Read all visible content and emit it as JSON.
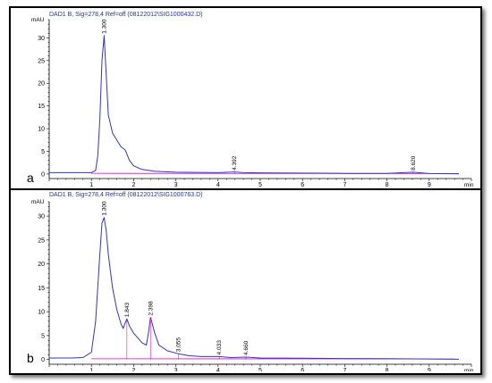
{
  "chart_data": [
    {
      "type": "line",
      "panel_letter": "a",
      "title": "DAD1 B, Sig=278,4 Ref=off (08122012\\SIG1000432.D)",
      "ylabel": "mAU",
      "xlabel": "min",
      "xlim": [
        0,
        10
      ],
      "ylim": [
        -1,
        34
      ],
      "x_ticks": [
        1,
        2,
        3,
        4,
        5,
        6,
        7,
        8,
        9
      ],
      "y_ticks": [
        0,
        5,
        10,
        15,
        20,
        25,
        30
      ],
      "peaks": [
        {
          "label": "1.300",
          "x": 1.3,
          "y": 30.5
        },
        {
          "label": "4.392",
          "x": 4.39,
          "y": 0.4
        },
        {
          "label": "8.620",
          "x": 8.62,
          "y": 0.4
        }
      ],
      "series": [
        {
          "x": [
            0.0,
            0.5,
            1.0,
            1.1,
            1.15,
            1.2,
            1.25,
            1.3,
            1.35,
            1.4,
            1.5,
            1.6,
            1.7,
            1.8,
            1.9,
            2.0,
            2.2,
            2.5,
            3.0,
            3.5,
            4.0,
            4.39,
            4.6,
            5.0,
            6.0,
            7.0,
            8.0,
            8.62,
            9.0,
            9.7
          ],
          "values": [
            0.3,
            0.3,
            0.3,
            0.8,
            4.0,
            12.0,
            25.0,
            30.5,
            22.0,
            13.0,
            9.0,
            7.5,
            6.0,
            5.3,
            3.0,
            1.8,
            1.0,
            0.6,
            0.4,
            0.35,
            0.3,
            0.45,
            0.3,
            0.25,
            0.2,
            0.15,
            0.12,
            0.4,
            0.1,
            0.05
          ]
        }
      ]
    },
    {
      "type": "line",
      "panel_letter": "b",
      "title": "DAD1 B, Sig=278,4 Ref=off (08122012\\SIG1000763.D)",
      "ylabel": "mAU",
      "xlabel": "min",
      "xlim": [
        0,
        10
      ],
      "ylim": [
        -1,
        33
      ],
      "x_ticks": [
        1,
        2,
        3,
        4,
        5,
        6,
        7,
        8,
        9
      ],
      "y_ticks": [
        0,
        5,
        10,
        15,
        20,
        25,
        30
      ],
      "peaks": [
        {
          "label": "1.300",
          "x": 1.3,
          "y": 29.7
        },
        {
          "label": "1.843",
          "x": 1.84,
          "y": 8.5
        },
        {
          "label": "2.398",
          "x": 2.4,
          "y": 8.8
        },
        {
          "label": "3.055",
          "x": 3.06,
          "y": 1.2
        },
        {
          "label": "4.033",
          "x": 4.03,
          "y": 0.6
        },
        {
          "label": "4.660",
          "x": 4.66,
          "y": 0.5
        }
      ],
      "series": [
        {
          "x": [
            0.0,
            0.5,
            0.8,
            1.0,
            1.1,
            1.2,
            1.25,
            1.3,
            1.35,
            1.4,
            1.5,
            1.6,
            1.7,
            1.75,
            1.84,
            1.9,
            2.0,
            2.1,
            2.2,
            2.3,
            2.35,
            2.4,
            2.5,
            2.6,
            2.8,
            3.06,
            3.3,
            3.6,
            4.03,
            4.3,
            4.66,
            5.0,
            6.0,
            7.0,
            8.0,
            9.0,
            9.7
          ],
          "values": [
            0.3,
            0.3,
            0.4,
            1.5,
            8.0,
            22.0,
            28.5,
            29.7,
            27.0,
            22.0,
            15.0,
            10.5,
            7.5,
            6.5,
            8.5,
            7.0,
            5.5,
            4.5,
            3.5,
            3.0,
            5.5,
            8.8,
            5.5,
            3.0,
            1.8,
            1.2,
            0.8,
            0.6,
            0.6,
            0.4,
            0.5,
            0.3,
            0.25,
            0.2,
            0.15,
            0.1,
            0.05
          ]
        }
      ]
    }
  ]
}
